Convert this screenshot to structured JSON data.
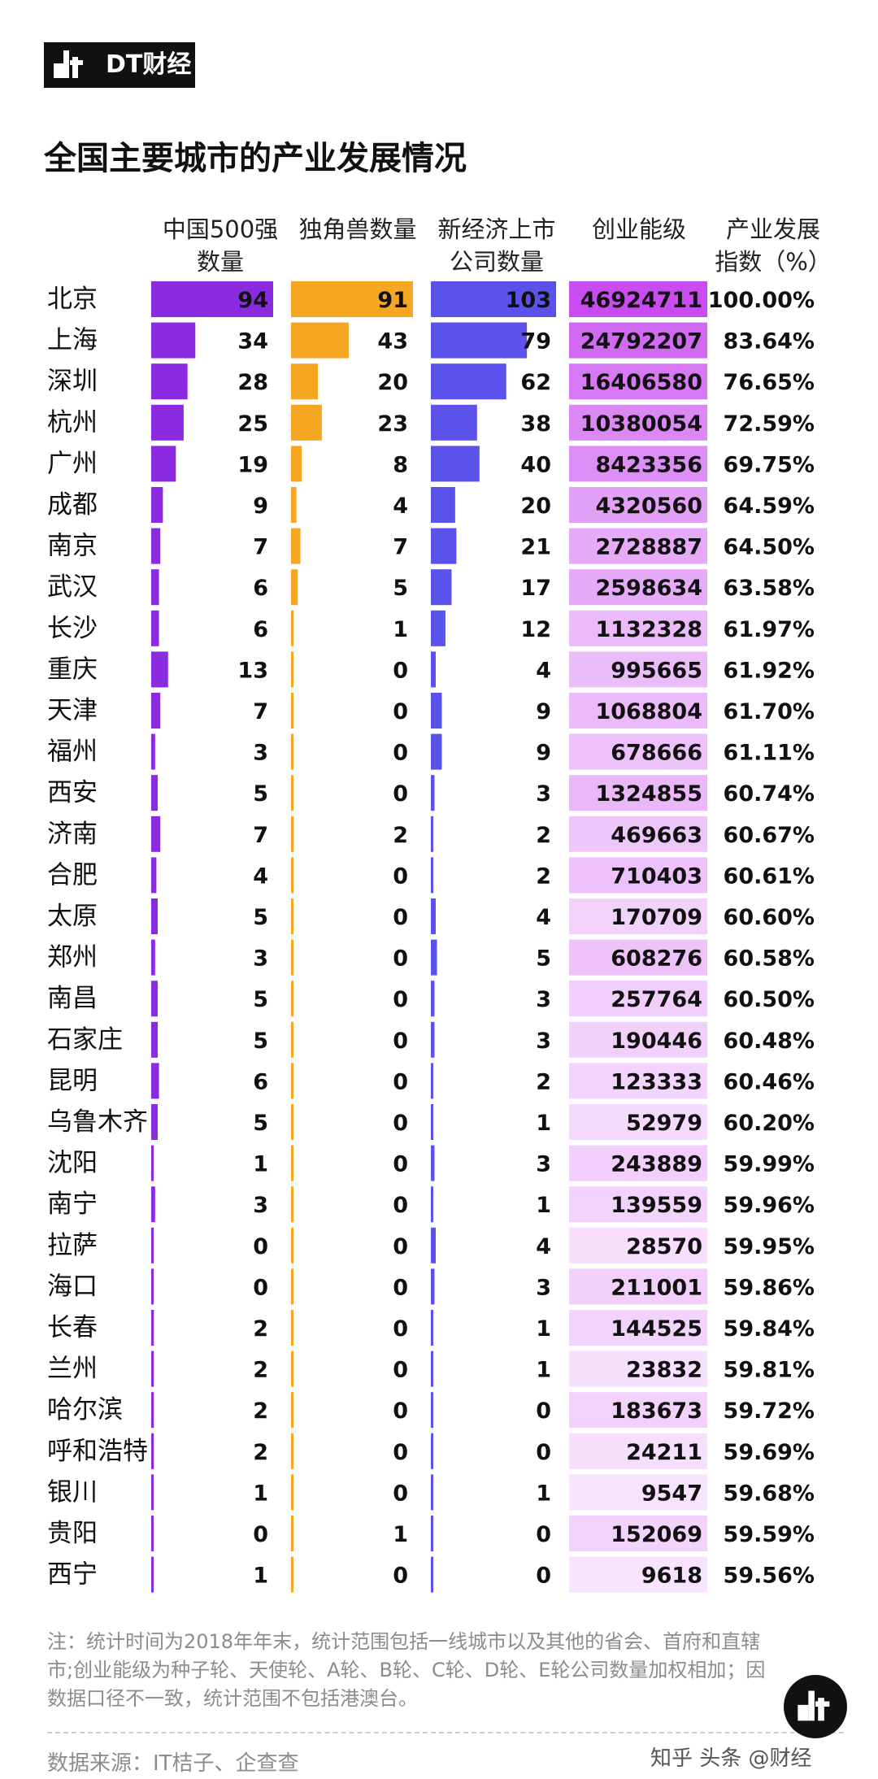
{
  "brand": {
    "name": "DT财经"
  },
  "title": "全国主要城市的产业发展情况",
  "headers": {
    "fortune500": "中国500强\n数量",
    "unicorns": "独角兽数量",
    "listed": "新经济上市\n公司数量",
    "startup": "创业能级",
    "index": "产业发展\n指数（%）"
  },
  "colors": {
    "fortune500": "#8a2be2",
    "unicorns": "#f5a623",
    "listed": "#5a52ea",
    "startup_high": "#c94cf0",
    "startup_low": "#fbf0fe"
  },
  "chart_data": {
    "type": "table",
    "title": "全国主要城市的产业发展情况",
    "columns": [
      "中国500强数量",
      "独角兽数量",
      "新经济上市公司数量",
      "创业能级",
      "产业发展指数（%）"
    ],
    "rows": [
      {
        "city": "北京",
        "fortune500": 94,
        "unicorns": 91,
        "listed": 103,
        "startup": 46924711,
        "index": "100.00%"
      },
      {
        "city": "上海",
        "fortune500": 34,
        "unicorns": 43,
        "listed": 79,
        "startup": 24792207,
        "index": "83.64%"
      },
      {
        "city": "深圳",
        "fortune500": 28,
        "unicorns": 20,
        "listed": 62,
        "startup": 16406580,
        "index": "76.65%"
      },
      {
        "city": "杭州",
        "fortune500": 25,
        "unicorns": 23,
        "listed": 38,
        "startup": 10380054,
        "index": "72.59%"
      },
      {
        "city": "广州",
        "fortune500": 19,
        "unicorns": 8,
        "listed": 40,
        "startup": 8423356,
        "index": "69.75%"
      },
      {
        "city": "成都",
        "fortune500": 9,
        "unicorns": 4,
        "listed": 20,
        "startup": 4320560,
        "index": "64.59%"
      },
      {
        "city": "南京",
        "fortune500": 7,
        "unicorns": 7,
        "listed": 21,
        "startup": 2728887,
        "index": "64.50%"
      },
      {
        "city": "武汉",
        "fortune500": 6,
        "unicorns": 5,
        "listed": 17,
        "startup": 2598634,
        "index": "63.58%"
      },
      {
        "city": "长沙",
        "fortune500": 6,
        "unicorns": 1,
        "listed": 12,
        "startup": 1132328,
        "index": "61.97%"
      },
      {
        "city": "重庆",
        "fortune500": 13,
        "unicorns": 0,
        "listed": 4,
        "startup": 995665,
        "index": "61.92%"
      },
      {
        "city": "天津",
        "fortune500": 7,
        "unicorns": 0,
        "listed": 9,
        "startup": 1068804,
        "index": "61.70%"
      },
      {
        "city": "福州",
        "fortune500": 3,
        "unicorns": 0,
        "listed": 9,
        "startup": 678666,
        "index": "61.11%"
      },
      {
        "city": "西安",
        "fortune500": 5,
        "unicorns": 0,
        "listed": 3,
        "startup": 1324855,
        "index": "60.74%"
      },
      {
        "city": "济南",
        "fortune500": 7,
        "unicorns": 2,
        "listed": 2,
        "startup": 469663,
        "index": "60.67%"
      },
      {
        "city": "合肥",
        "fortune500": 4,
        "unicorns": 0,
        "listed": 2,
        "startup": 710403,
        "index": "60.61%"
      },
      {
        "city": "太原",
        "fortune500": 5,
        "unicorns": 0,
        "listed": 4,
        "startup": 170709,
        "index": "60.60%"
      },
      {
        "city": "郑州",
        "fortune500": 3,
        "unicorns": 0,
        "listed": 5,
        "startup": 608276,
        "index": "60.58%"
      },
      {
        "city": "南昌",
        "fortune500": 5,
        "unicorns": 0,
        "listed": 3,
        "startup": 257764,
        "index": "60.50%"
      },
      {
        "city": "石家庄",
        "fortune500": 5,
        "unicorns": 0,
        "listed": 3,
        "startup": 190446,
        "index": "60.48%"
      },
      {
        "city": "昆明",
        "fortune500": 6,
        "unicorns": 0,
        "listed": 2,
        "startup": 123333,
        "index": "60.46%"
      },
      {
        "city": "乌鲁木齐",
        "fortune500": 5,
        "unicorns": 0,
        "listed": 1,
        "startup": 52979,
        "index": "60.20%"
      },
      {
        "city": "沈阳",
        "fortune500": 1,
        "unicorns": 0,
        "listed": 3,
        "startup": 243889,
        "index": "59.99%"
      },
      {
        "city": "南宁",
        "fortune500": 3,
        "unicorns": 0,
        "listed": 1,
        "startup": 139559,
        "index": "59.96%"
      },
      {
        "city": "拉萨",
        "fortune500": 0,
        "unicorns": 0,
        "listed": 4,
        "startup": 28570,
        "index": "59.95%"
      },
      {
        "city": "海口",
        "fortune500": 0,
        "unicorns": 0,
        "listed": 3,
        "startup": 211001,
        "index": "59.86%"
      },
      {
        "city": "长春",
        "fortune500": 2,
        "unicorns": 0,
        "listed": 1,
        "startup": 144525,
        "index": "59.84%"
      },
      {
        "city": "兰州",
        "fortune500": 2,
        "unicorns": 0,
        "listed": 1,
        "startup": 23832,
        "index": "59.81%"
      },
      {
        "city": "哈尔滨",
        "fortune500": 2,
        "unicorns": 0,
        "listed": 0,
        "startup": 183673,
        "index": "59.72%"
      },
      {
        "city": "呼和浩特",
        "fortune500": 2,
        "unicorns": 0,
        "listed": 0,
        "startup": 24211,
        "index": "59.69%"
      },
      {
        "city": "银川",
        "fortune500": 1,
        "unicorns": 0,
        "listed": 1,
        "startup": 9547,
        "index": "59.68%"
      },
      {
        "city": "贵阳",
        "fortune500": 0,
        "unicorns": 1,
        "listed": 0,
        "startup": 152069,
        "index": "59.59%"
      },
      {
        "city": "西宁",
        "fortune500": 1,
        "unicorns": 0,
        "listed": 0,
        "startup": 9618,
        "index": "59.56%"
      }
    ]
  },
  "note": "注：统计时间为2018年年末，统计范围包括一线城市以及其他的省会、首府和直辖市;创业能级为种子轮、天使轮、A轮、B轮、C轮、D轮、E轮公司数量加权相加；因数据口径不一致，统计范围不包括港澳台。",
  "source": "数据来源：IT桔子、企查查",
  "watermark": "知乎 头条 @财经"
}
